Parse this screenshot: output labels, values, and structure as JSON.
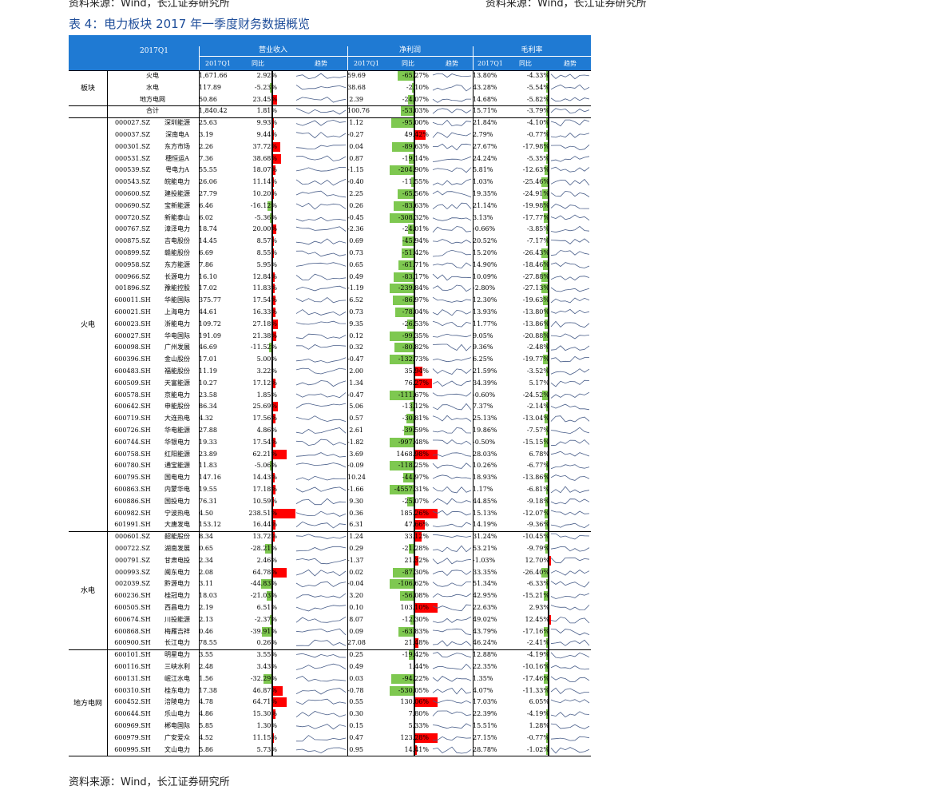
{
  "top_sources": [
    "资料来源：Wind，长江证券研究所",
    "资料来源：Wind，长江证券研究所"
  ],
  "title": "表 4：电力板块 2017 年一季度财务数据概览",
  "source": "资料来源：Wind，长江证券研究所",
  "header": {
    "period": "2017Q1",
    "groups": [
      "营业收入",
      "净利润",
      "毛利率"
    ],
    "sub": [
      "2017Q1",
      "同比",
      "趋势"
    ]
  },
  "colors": {
    "header": "#1f7ad3",
    "positive": "#ff0000",
    "negative": "#7ec850",
    "title": "#1f4e9a"
  },
  "sections": [
    {
      "name": "板块",
      "rows": [
        [
          "火电",
          "",
          "1,671.66",
          "2.92%",
          "59.69",
          "-65.27%",
          "13.80%",
          "-4.33%"
        ],
        [
          "水电",
          "",
          "117.89",
          "-5.23%",
          "38.68",
          "-2.10%",
          "43.28%",
          "-5.54%"
        ],
        [
          "地方电网",
          "",
          "50.86",
          "23.45%",
          "2.39",
          "-24.07%",
          "14.68%",
          "-5.82%"
        ],
        [
          "合计",
          "",
          "1,840.42",
          "1.81%",
          "100.76",
          "-53.03%",
          "15.71%",
          "-3.79%"
        ]
      ]
    },
    {
      "name": "火电",
      "rows": [
        [
          "000027.SZ",
          "深圳能源",
          "25.63",
          "9.93%",
          "1.12",
          "-95.00%",
          "21.84%",
          "-4.10%"
        ],
        [
          "000037.SZ",
          "深南电A",
          "3.19",
          "9.44%",
          "-0.27",
          "49.42%",
          "2.79%",
          "-0.77%"
        ],
        [
          "000301.SZ",
          "东方市场",
          "2.26",
          "37.72%",
          "0.04",
          "-89.63%",
          "27.67%",
          "-17.98%"
        ],
        [
          "000531.SZ",
          "穗恒运A",
          "7.36",
          "38.68%",
          "0.87",
          "-19.14%",
          "24.24%",
          "-5.35%"
        ],
        [
          "000539.SZ",
          "粤电力A",
          "55.55",
          "18.07%",
          "-1.15",
          "-204.90%",
          "5.81%",
          "-12.63%"
        ],
        [
          "000543.SZ",
          "皖能电力",
          "26.06",
          "11.14%",
          "-0.40",
          "-11.55%",
          "1.03%",
          "-25.46%"
        ],
        [
          "000600.SZ",
          "建投能源",
          "27.79",
          "10.20%",
          "2.25",
          "-65.56%",
          "19.35%",
          "-24.91%"
        ],
        [
          "000690.SZ",
          "宝新能源",
          "6.46",
          "-16.12%",
          "0.26",
          "-83.63%",
          "21.14%",
          "-19.98%"
        ],
        [
          "000720.SZ",
          "新能泰山",
          "6.02",
          "-5.36%",
          "-0.45",
          "-308.32%",
          "3.13%",
          "-17.77%"
        ],
        [
          "000767.SZ",
          "漳泽电力",
          "18.74",
          "20.00%",
          "-2.36",
          "-24.01%",
          "-0.66%",
          "-3.85%"
        ],
        [
          "000875.SZ",
          "吉电股份",
          "14.45",
          "8.57%",
          "0.69",
          "-45.94%",
          "20.52%",
          "-7.17%"
        ],
        [
          "000899.SZ",
          "赣能股份",
          "6.69",
          "8.55%",
          "0.73",
          "-51.42%",
          "15.20%",
          "-26.43%"
        ],
        [
          "000958.SZ",
          "东方能源",
          "7.86",
          "5.95%",
          "0.65",
          "-61.71%",
          "14.90%",
          "-18.46%"
        ],
        [
          "000966.SZ",
          "长源电力",
          "16.10",
          "12.84%",
          "0.49",
          "-83.17%",
          "10.09%",
          "-27.88%"
        ],
        [
          "001896.SZ",
          "豫能控股",
          "17.02",
          "11.83%",
          "-1.19",
          "-239.84%",
          "-2.80%",
          "-27.13%"
        ],
        [
          "600011.SH",
          "华能国际",
          "375.77",
          "17.54%",
          "6.52",
          "-86.97%",
          "12.30%",
          "-19.63%"
        ],
        [
          "600021.SH",
          "上海电力",
          "44.61",
          "16.33%",
          "0.73",
          "-78.04%",
          "13.93%",
          "-13.80%"
        ],
        [
          "600023.SH",
          "浙能电力",
          "109.72",
          "27.18%",
          "9.35",
          "-26.53%",
          "11.77%",
          "-13.86%"
        ],
        [
          "600027.SH",
          "华电国际",
          "191.09",
          "21.38%",
          "0.12",
          "-99.35%",
          "9.05%",
          "-20.88%"
        ],
        [
          "600098.SH",
          "广州发展",
          "46.69",
          "-11.52%",
          "0.32",
          "-80.82%",
          "9.36%",
          "-2.48%"
        ],
        [
          "600396.SH",
          "金山股份",
          "17.01",
          "5.00%",
          "-0.47",
          "-132.73%",
          "6.25%",
          "-19.77%"
        ],
        [
          "600483.SH",
          "福能股份",
          "11.19",
          "3.22%",
          "2.00",
          "35.94%",
          "21.59%",
          "-3.52%"
        ],
        [
          "600509.SH",
          "天富能源",
          "10.27",
          "17.12%",
          "1.34",
          "76.27%",
          "34.39%",
          "5.17%"
        ],
        [
          "600578.SH",
          "京能电力",
          "23.58",
          "1.85%",
          "-0.47",
          "-111.67%",
          "-0.60%",
          "-24.52%"
        ],
        [
          "600642.SH",
          "申能股份",
          "86.34",
          "25.69%",
          "5.06",
          "-13.12%",
          "7.37%",
          "-2.14%"
        ],
        [
          "600719.SH",
          "大连热电",
          "4.32",
          "17.56%",
          "0.57",
          "-30.81%",
          "25.13%",
          "-13.04%"
        ],
        [
          "600726.SH",
          "华电能源",
          "27.88",
          "4.86%",
          "2.61",
          "-39.59%",
          "19.86%",
          "-7.57%"
        ],
        [
          "600744.SH",
          "华银电力",
          "19.33",
          "17.54%",
          "-1.82",
          "-997.48%",
          "-0.50%",
          "-15.15%"
        ],
        [
          "600758.SH",
          "红阳能源",
          "23.89",
          "62.21%",
          "3.69",
          "1468.98%",
          "28.03%",
          "6.78%"
        ],
        [
          "600780.SH",
          "通宝能源",
          "11.83",
          "-5.06%",
          "-0.09",
          "-118.25%",
          "10.26%",
          "-6.77%"
        ],
        [
          "600795.SH",
          "国电电力",
          "147.16",
          "14.43%",
          "10.24",
          "-44.97%",
          "18.93%",
          "-13.86%"
        ],
        [
          "600863.SH",
          "内蒙华电",
          "19.55",
          "17.18%",
          "-1.66",
          "-4557.31%",
          "1.17%",
          "-6.81%"
        ],
        [
          "600886.SH",
          "国投电力",
          "76.31",
          "10.59%",
          "9.30",
          "-25.07%",
          "44.85%",
          "-9.18%"
        ],
        [
          "600982.SH",
          "宁波热电",
          "4.50",
          "238.51%",
          "0.36",
          "185.26%",
          "15.13%",
          "-12.07%"
        ],
        [
          "601991.SH",
          "大唐发电",
          "153.12",
          "16.44%",
          "6.31",
          "47.66%",
          "14.19%",
          "-9.36%"
        ]
      ]
    },
    {
      "name": "水电",
      "rows": [
        [
          "000601.SZ",
          "韶能股份",
          "8.34",
          "13.72%",
          "1.24",
          "33.12%",
          "31.24%",
          "-10.45%"
        ],
        [
          "000722.SZ",
          "湖南发展",
          "0.65",
          "-28.21%",
          "0.29",
          "-21.28%",
          "53.21%",
          "-9.79%"
        ],
        [
          "000791.SZ",
          "甘肃电投",
          "2.34",
          "2.46%",
          "-1.37",
          "21.32%",
          "-1.03%",
          "12.70%"
        ],
        [
          "000993.SZ",
          "闽东电力",
          "2.08",
          "64.78%",
          "0.02",
          "-87.30%",
          "33.35%",
          "-26.40%"
        ],
        [
          "002039.SZ",
          "黔源电力",
          "3.11",
          "-44.83%",
          "-0.04",
          "-106.62%",
          "51.34%",
          "-6.33%"
        ],
        [
          "600236.SH",
          "桂冠电力",
          "18.03",
          "-21.03%",
          "3.20",
          "-56.08%",
          "42.95%",
          "-15.21%"
        ],
        [
          "600505.SH",
          "西昌电力",
          "2.19",
          "6.51%",
          "0.10",
          "103.10%",
          "22.63%",
          "2.93%"
        ],
        [
          "600674.SH",
          "川投能源",
          "2.13",
          "-2.37%",
          "8.07",
          "-12.30%",
          "49.02%",
          "12.45%"
        ],
        [
          "600868.SH",
          "梅雁吉祥",
          "0.46",
          "-39.91%",
          "0.09",
          "-63.83%",
          "43.79%",
          "-17.16%"
        ],
        [
          "600900.SH",
          "长江电力",
          "78.55",
          "0.26%",
          "27.08",
          "21.48%",
          "46.24%",
          "-2.41%"
        ]
      ]
    },
    {
      "name": "地方电网",
      "rows": [
        [
          "600101.SH",
          "明星电力",
          "3.55",
          "3.55%",
          "0.25",
          "-19.42%",
          "12.88%",
          "-4.19%"
        ],
        [
          "600116.SH",
          "三峡水利",
          "2.48",
          "3.43%",
          "0.49",
          "1.44%",
          "22.35%",
          "-10.16%"
        ],
        [
          "600131.SH",
          "岷江水电",
          "1.56",
          "-32.29%",
          "0.03",
          "-94.22%",
          "1.35%",
          "-17.46%"
        ],
        [
          "600310.SH",
          "桂东电力",
          "17.38",
          "46.87%",
          "-0.78",
          "-530.05%",
          "4.07%",
          "-11.33%"
        ],
        [
          "600452.SH",
          "涪陵电力",
          "4.78",
          "64.71%",
          "0.55",
          "130.06%",
          "17.03%",
          "6.05%"
        ],
        [
          "600644.SH",
          "乐山电力",
          "4.86",
          "15.30%",
          "0.30",
          "7.80%",
          "22.39%",
          "-4.19%"
        ],
        [
          "600969.SH",
          "郴电国际",
          "5.85",
          "1.30%",
          "0.15",
          "5.33%",
          "15.51%",
          "1.28%"
        ],
        [
          "600979.SH",
          "广安爱众",
          "4.52",
          "11.15%",
          "0.47",
          "123.28%",
          "27.15%",
          "-0.77%"
        ],
        [
          "600995.SH",
          "文山电力",
          "5.86",
          "5.73%",
          "0.95",
          "14.41%",
          "28.78%",
          "-1.02%"
        ]
      ]
    }
  ]
}
